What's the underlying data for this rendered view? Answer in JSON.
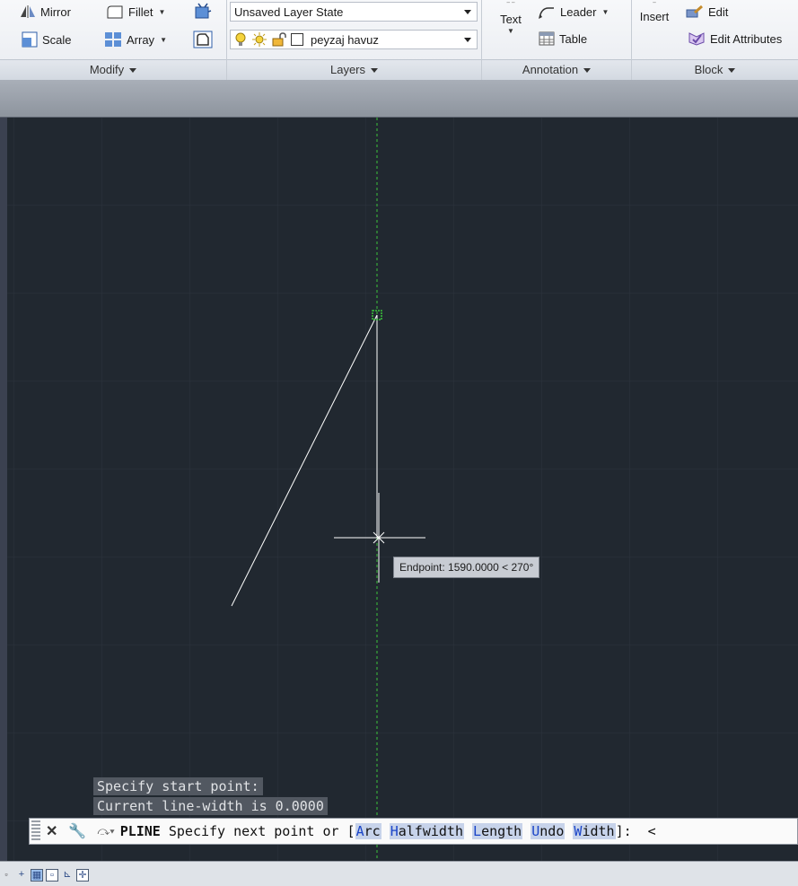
{
  "ribbon": {
    "modify": {
      "items": [
        "Mirror",
        "Fillet",
        "Scale",
        "Array"
      ],
      "footer": "Modify"
    },
    "layers": {
      "layer_state": "Unsaved Layer State",
      "current_layer": "peyzaj havuz",
      "footer": "Layers"
    },
    "annotation": {
      "text": "Text",
      "leader": "Leader",
      "table": "Table",
      "footer": "Annotation"
    },
    "block": {
      "insert": "Insert",
      "edit": "Edit",
      "edit_attributes": "Edit Attributes",
      "footer": "Block"
    }
  },
  "drawing": {
    "tooltip": "Endpoint: 1590.0000 < 270°",
    "colors": {
      "background": "#212830",
      "grid": "#2c333d",
      "line": "#ffffff",
      "track": "#3ac43a"
    }
  },
  "command": {
    "history": [
      "Specify start point:",
      "Current line-width is 0.0000"
    ],
    "name": "PLINE",
    "prompt": "Specify next point or [",
    "options": [
      {
        "key": "A",
        "rest": "rc"
      },
      {
        "key": "H",
        "rest": "alfwidth"
      },
      {
        "key": "L",
        "rest": "ength"
      },
      {
        "key": "U",
        "rest": "ndo"
      },
      {
        "key": "W",
        "rest": "idth"
      }
    ],
    "suffix": "]:  <"
  }
}
